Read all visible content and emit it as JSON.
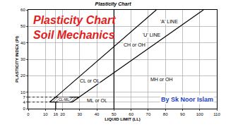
{
  "chart_data": {
    "type": "line",
    "title": "Plasticity Chart",
    "x_label": "LIQUID LIMIT (LL)",
    "y_label": "PLASTICITY INDEX (PI)",
    "xlim": [
      0,
      110
    ],
    "ylim": [
      0,
      60
    ],
    "xticks": [
      0,
      10,
      16,
      20,
      30,
      40,
      50,
      60,
      70,
      80,
      90,
      100,
      110
    ],
    "yticks": [
      0,
      4,
      7,
      10,
      20,
      30,
      40,
      50,
      60
    ],
    "grid": true,
    "series": [
      {
        "color": "#000000",
        "line_style": "solid",
        "x": [
          25.5,
          102.2
        ],
        "values": [
          4,
          60
        ]
      },
      {
        "color": "#000000",
        "line_style": "solid",
        "x": [
          16,
          16,
          74.7
        ],
        "values": [
          0,
          7,
          60
        ]
      },
      {
        "color": "#000000",
        "line_style": "solid",
        "x": [
          50,
          50
        ],
        "values": [
          0,
          60
        ]
      },
      {
        "color": "#000000",
        "line_style": "dot",
        "x": [
          0,
          12.4
        ],
        "values": [
          4,
          4
        ]
      },
      {
        "color": "#000000",
        "line_style": "dot",
        "x": [
          0,
          16
        ],
        "values": [
          7,
          7
        ]
      },
      {
        "type": "area",
        "color": "#000000",
        "line_style": "solid",
        "x": [
          12.4,
          16,
          29.6,
          25.5,
          12.4
        ],
        "values": [
          4,
          7,
          7,
          4,
          4
        ]
      }
    ],
    "annotations": [
      {
        "text": "CL or OL",
        "x": 36,
        "y": 17
      },
      {
        "text": "CH or OH",
        "x": 62,
        "y": 39
      },
      {
        "text": "ML or OL",
        "x": 40,
        "y": 5
      },
      {
        "text": "MH or OH",
        "x": 78,
        "y": 18
      },
      {
        "text": "CL-ML",
        "x": 21,
        "y": 5.5
      },
      {
        "text": "'U' LINE",
        "x": 72,
        "y": 45
      },
      {
        "text": "'A' LINE",
        "x": 82,
        "y": 53
      }
    ],
    "overlay": [
      "Plasticity Chart",
      "Soil Mechanics"
    ],
    "credit": "By Sk Noor Islam"
  }
}
